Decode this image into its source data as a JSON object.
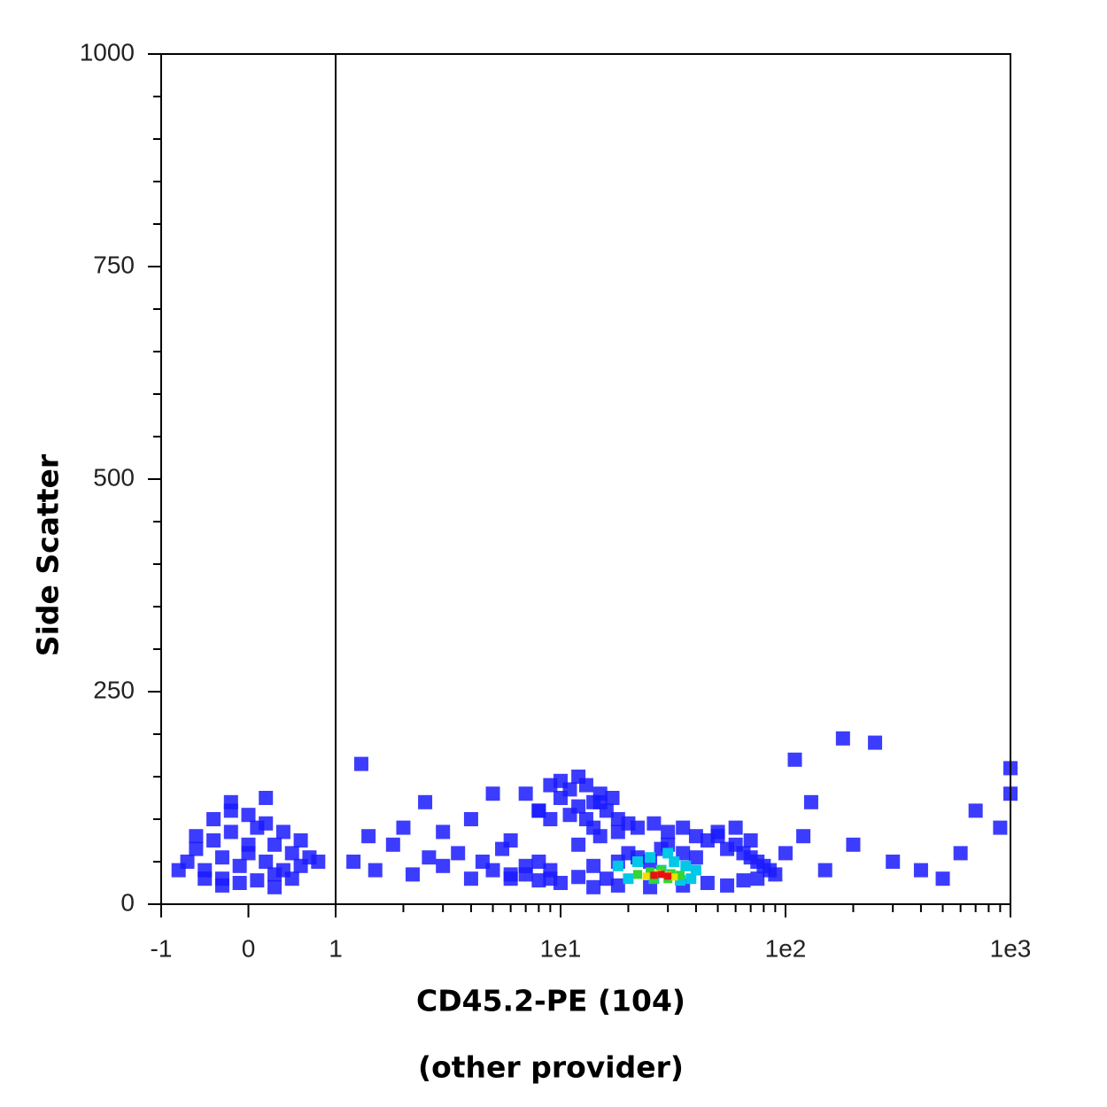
{
  "chart_data": {
    "type": "scatter",
    "xscale": "biexponential",
    "xlabel": [
      "CD45.2-PE (104)",
      "(other provider)"
    ],
    "ylabel": "Side Scatter",
    "xlim": [
      -1,
      1000
    ],
    "ylim": [
      0,
      1000
    ],
    "xticks": [
      -1,
      0,
      1,
      {
        "value": 10,
        "label": "1e1"
      },
      {
        "value": 100,
        "label": "1e2"
      },
      {
        "value": 1000,
        "label": "1e3"
      }
    ],
    "xminorticks": [
      2,
      3,
      4,
      5,
      6,
      7,
      8,
      9,
      20,
      30,
      40,
      50,
      60,
      70,
      80,
      90,
      200,
      300,
      400,
      500,
      600,
      700,
      800,
      900
    ],
    "yticks": [
      0,
      250,
      500,
      750,
      1000
    ],
    "yminorticks": [
      50,
      100,
      150,
      200,
      300,
      350,
      400,
      450,
      550,
      600,
      650,
      700,
      800,
      850,
      900,
      950
    ],
    "threshold_x": 1,
    "series": [
      {
        "color": "#1a1aff",
        "x": [
          -0.7,
          -0.6,
          -0.5,
          -0.4,
          -0.3,
          -0.2,
          -0.1,
          0,
          0.1,
          0.2,
          0.3,
          0.4,
          0.5,
          0.6,
          0.7,
          -0.5,
          -0.3,
          -0.1,
          0.1,
          0.3,
          0.5,
          -0.4,
          -0.2,
          0,
          0.2,
          0.4,
          -0.6,
          0.6,
          -0.2,
          0.2,
          0,
          -0.8,
          0.8,
          0.3,
          -0.3,
          1.2,
          1.5,
          1.8,
          2.2,
          2.6,
          3,
          3.5,
          4,
          4.5,
          5,
          5.5,
          6,
          7,
          8,
          9,
          1.4,
          2,
          3,
          4,
          6,
          8,
          1.3,
          2.5,
          5,
          7,
          8,
          9,
          10,
          11,
          12,
          13,
          14,
          15,
          16,
          18,
          20,
          9,
          11,
          13,
          15,
          17,
          10,
          12,
          14,
          6,
          7,
          8,
          9,
          10,
          12,
          14,
          16,
          18,
          20,
          22,
          25,
          28,
          30,
          35,
          40,
          45,
          50,
          55,
          60,
          65,
          70,
          75,
          80,
          85,
          90,
          12,
          15,
          18,
          22,
          26,
          30,
          35,
          40,
          50,
          60,
          70,
          14,
          18,
          25,
          35,
          45,
          55,
          65,
          75,
          100,
          120,
          150,
          200,
          250,
          300,
          400,
          500,
          600,
          700,
          900,
          1000,
          1000,
          180,
          130,
          110
        ],
        "values": [
          50,
          65,
          40,
          75,
          55,
          85,
          45,
          60,
          90,
          50,
          70,
          40,
          60,
          45,
          55,
          30,
          30,
          25,
          28,
          35,
          30,
          100,
          110,
          105,
          95,
          85,
          80,
          75,
          120,
          125,
          70,
          40,
          50,
          20,
          22,
          50,
          40,
          70,
          35,
          55,
          45,
          60,
          30,
          50,
          40,
          65,
          35,
          45,
          50,
          30,
          80,
          90,
          85,
          100,
          75,
          110,
          165,
          120,
          130,
          130,
          110,
          140,
          125,
          135,
          115,
          140,
          120,
          130,
          110,
          100,
          95,
          100,
          105,
          100,
          120,
          125,
          145,
          150,
          90,
          30,
          35,
          28,
          40,
          25,
          32,
          45,
          30,
          50,
          60,
          55,
          50,
          65,
          70,
          60,
          55,
          75,
          80,
          65,
          70,
          60,
          55,
          50,
          45,
          40,
          35,
          70,
          80,
          85,
          90,
          95,
          85,
          90,
          80,
          85,
          90,
          75,
          20,
          22,
          20,
          22,
          25,
          22,
          28,
          30,
          60,
          80,
          40,
          70,
          190,
          50,
          40,
          30,
          60,
          110,
          90,
          160,
          130,
          195,
          120,
          170
        ]
      },
      {
        "color": "#00c8e6",
        "x": [
          18,
          22,
          25,
          28,
          32,
          36,
          40,
          20,
          30,
          38,
          26,
          34
        ],
        "values": [
          45,
          50,
          55,
          40,
          50,
          45,
          40,
          30,
          60,
          30,
          30,
          28
        ]
      },
      {
        "color": "#33d633",
        "x": [
          22,
          25,
          28,
          31,
          34,
          26,
          30
        ],
        "values": [
          35,
          38,
          40,
          36,
          34,
          30,
          30
        ]
      },
      {
        "color": "#f0e000",
        "x": [
          24,
          27,
          30,
          32
        ],
        "values": [
          33,
          36,
          34,
          32
        ]
      },
      {
        "color": "#e81010",
        "x": [
          26,
          28,
          30
        ],
        "values": [
          34,
          35,
          33
        ]
      }
    ]
  }
}
